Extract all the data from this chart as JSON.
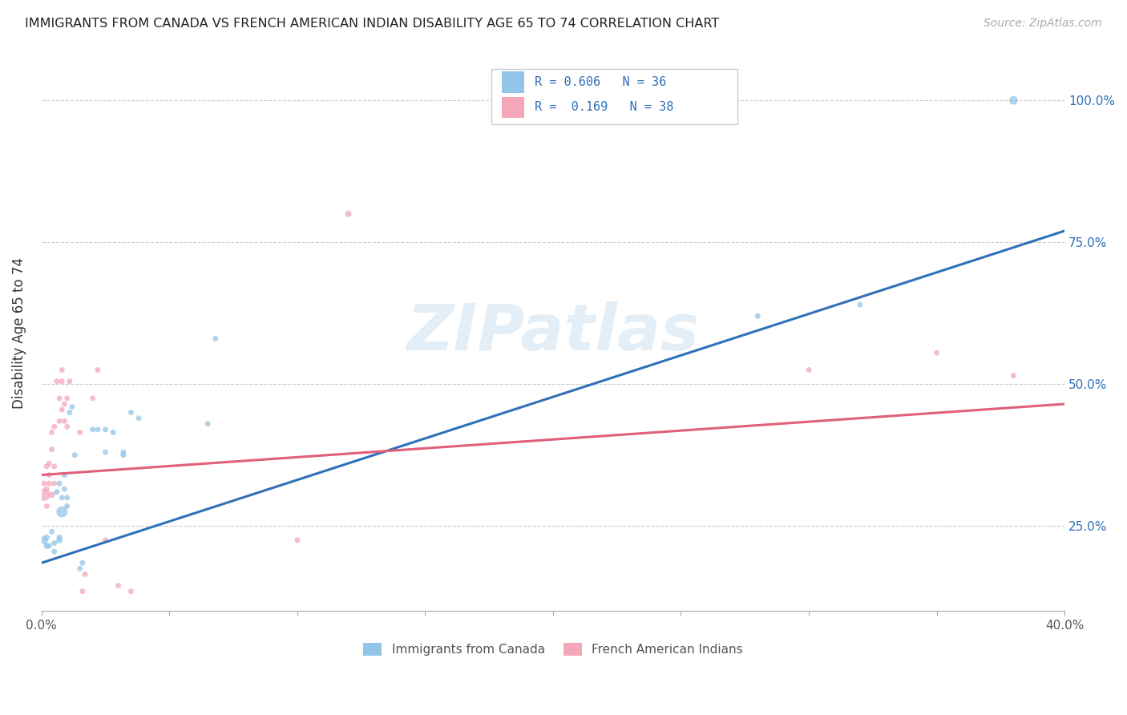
{
  "title": "IMMIGRANTS FROM CANADA VS FRENCH AMERICAN INDIAN DISABILITY AGE 65 TO 74 CORRELATION CHART",
  "source": "Source: ZipAtlas.com",
  "ylabel": "Disability Age 65 to 74",
  "watermark": "ZIPatlas",
  "legend_blue_label": "Immigrants from Canada",
  "legend_pink_label": "French American Indians",
  "blue_color": "#92c5e8",
  "pink_color": "#f4a7b9",
  "blue_line_color": "#3070b8",
  "pink_line_color": "#e0607a",
  "xlim": [
    0.0,
    0.4
  ],
  "ylim": [
    0.1,
    1.08
  ],
  "yticks": [
    0.25,
    0.5,
    0.75,
    1.0
  ],
  "ytick_labels": [
    "25.0%",
    "50.0%",
    "75.0%",
    "100.0%"
  ],
  "xticks": [
    0.0,
    0.05,
    0.1,
    0.15,
    0.2,
    0.25,
    0.3,
    0.35,
    0.4
  ],
  "blue_scatter_x": [
    0.001,
    0.002,
    0.002,
    0.003,
    0.004,
    0.005,
    0.005,
    0.006,
    0.007,
    0.007,
    0.007,
    0.008,
    0.008,
    0.009,
    0.009,
    0.01,
    0.01,
    0.011,
    0.012,
    0.013,
    0.015,
    0.016,
    0.02,
    0.022,
    0.025,
    0.025,
    0.028,
    0.032,
    0.032,
    0.035,
    0.038,
    0.065,
    0.068,
    0.28,
    0.32,
    0.38
  ],
  "blue_scatter_y": [
    0.225,
    0.215,
    0.23,
    0.215,
    0.24,
    0.205,
    0.22,
    0.31,
    0.225,
    0.23,
    0.325,
    0.275,
    0.3,
    0.34,
    0.315,
    0.285,
    0.3,
    0.45,
    0.46,
    0.375,
    0.175,
    0.185,
    0.42,
    0.42,
    0.38,
    0.42,
    0.415,
    0.375,
    0.38,
    0.45,
    0.44,
    0.43,
    0.58,
    0.62,
    0.64,
    1.0
  ],
  "blue_scatter_sizes": [
    50,
    30,
    30,
    25,
    25,
    25,
    25,
    25,
    35,
    25,
    25,
    100,
    25,
    25,
    25,
    25,
    25,
    25,
    25,
    25,
    25,
    25,
    25,
    25,
    25,
    25,
    25,
    25,
    25,
    25,
    25,
    25,
    25,
    25,
    25,
    60
  ],
  "pink_scatter_x": [
    0.001,
    0.001,
    0.002,
    0.002,
    0.002,
    0.003,
    0.003,
    0.003,
    0.004,
    0.004,
    0.004,
    0.005,
    0.005,
    0.005,
    0.006,
    0.007,
    0.007,
    0.008,
    0.008,
    0.008,
    0.009,
    0.009,
    0.01,
    0.01,
    0.011,
    0.015,
    0.016,
    0.017,
    0.02,
    0.022,
    0.025,
    0.03,
    0.035,
    0.1,
    0.12,
    0.3,
    0.35,
    0.38
  ],
  "pink_scatter_y": [
    0.305,
    0.325,
    0.285,
    0.315,
    0.355,
    0.36,
    0.325,
    0.34,
    0.305,
    0.385,
    0.415,
    0.325,
    0.355,
    0.425,
    0.505,
    0.435,
    0.475,
    0.455,
    0.505,
    0.525,
    0.435,
    0.465,
    0.425,
    0.475,
    0.505,
    0.415,
    0.135,
    0.165,
    0.475,
    0.525,
    0.225,
    0.145,
    0.135,
    0.225,
    0.8,
    0.525,
    0.555,
    0.515
  ],
  "pink_scatter_sizes": [
    120,
    25,
    25,
    25,
    25,
    25,
    25,
    25,
    35,
    25,
    25,
    25,
    25,
    25,
    25,
    25,
    25,
    25,
    25,
    25,
    25,
    25,
    25,
    25,
    25,
    25,
    25,
    25,
    25,
    25,
    25,
    25,
    25,
    25,
    35,
    25,
    25,
    25
  ],
  "blue_line_x": [
    0.0,
    0.4
  ],
  "blue_line_y": [
    0.185,
    0.77
  ],
  "pink_line_x": [
    0.0,
    0.4
  ],
  "pink_line_y": [
    0.34,
    0.465
  ]
}
